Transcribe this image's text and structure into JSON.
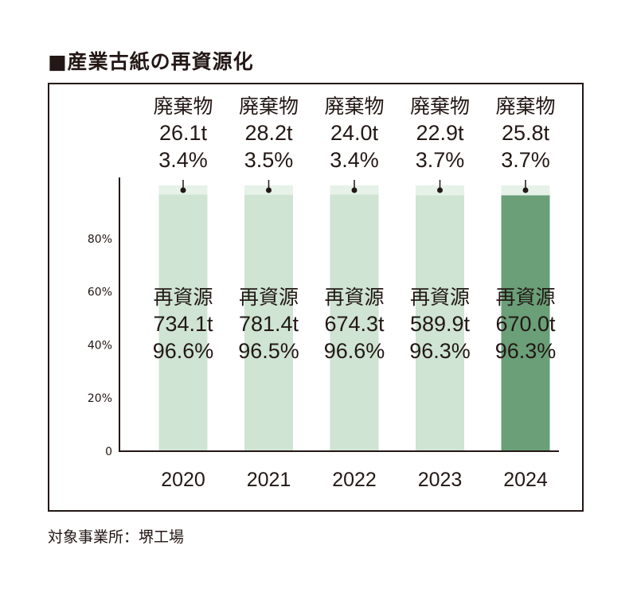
{
  "title": "■産業古紙の再資源化",
  "footnote": "対象事業所：堺工場",
  "colors": {
    "recycled": "#cfe4d3",
    "recycled_highlight": "#6a9f78",
    "waste": "#e6f1e8",
    "axis": "#231815",
    "text": "#231815"
  },
  "chart_data": {
    "type": "bar",
    "stacked": true,
    "percent_stacked": true,
    "categories": [
      "2020",
      "2021",
      "2022",
      "2023",
      "2024"
    ],
    "highlight_category": "2024",
    "series": [
      {
        "name": "再資源",
        "tonnes": [
          "734.1t",
          "781.4t",
          "674.3t",
          "589.9t",
          "670.0t"
        ],
        "percent_labels": [
          "96.6%",
          "96.5%",
          "96.6%",
          "96.3%",
          "96.3%"
        ],
        "values": [
          96.6,
          96.5,
          96.6,
          96.3,
          96.3
        ]
      },
      {
        "name": "廃棄物",
        "tonnes": [
          "26.1t",
          "28.2t",
          "24.0t",
          "22.9t",
          "25.8t"
        ],
        "percent_labels": [
          "3.4%",
          "3.5%",
          "3.4%",
          "3.7%",
          "3.7%"
        ],
        "values": [
          3.4,
          3.5,
          3.4,
          3.7,
          3.7
        ]
      }
    ],
    "yticks": [
      "0",
      "20%",
      "40%",
      "60%",
      "80%"
    ],
    "ytick_values": [
      0,
      20,
      40,
      60,
      80
    ],
    "ylim": [
      0,
      100
    ],
    "legend": "none",
    "grid": false
  }
}
